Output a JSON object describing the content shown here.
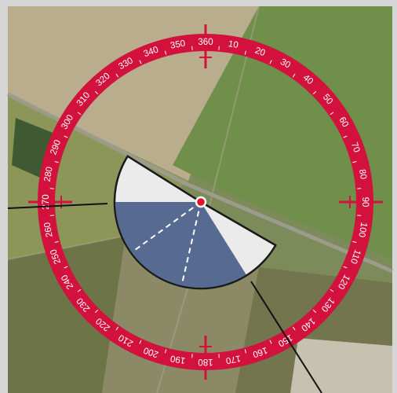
{
  "compass": {
    "labels": [
      10,
      20,
      30,
      40,
      50,
      60,
      70,
      80,
      90,
      100,
      110,
      120,
      130,
      140,
      150,
      160,
      170,
      180,
      190,
      200,
      210,
      220,
      230,
      240,
      250,
      260,
      270,
      280,
      290,
      300,
      310,
      320,
      330,
      340,
      350,
      360
    ]
  }
}
